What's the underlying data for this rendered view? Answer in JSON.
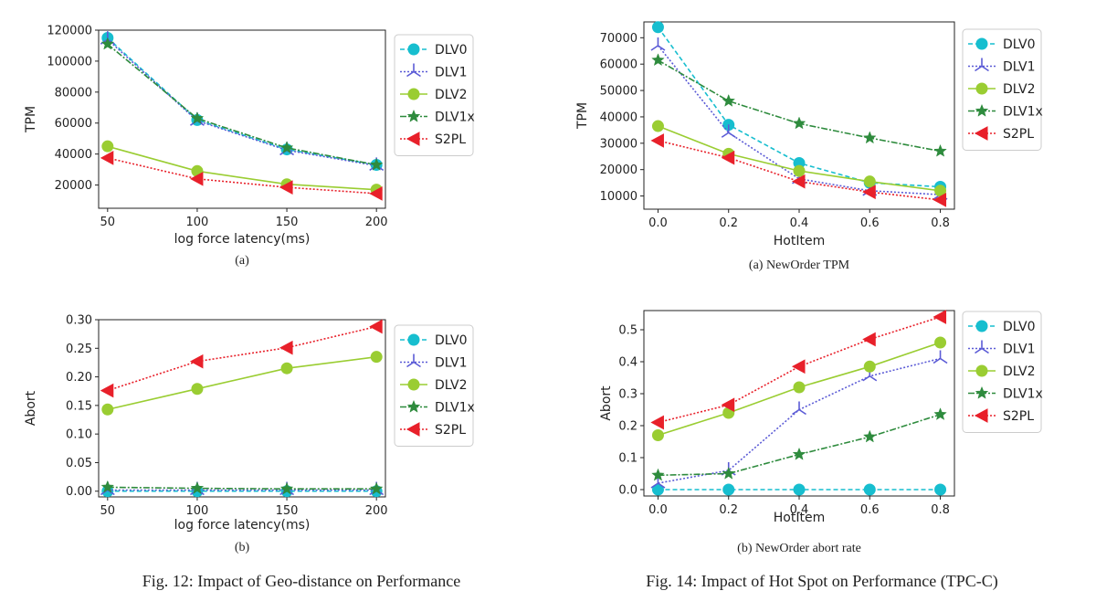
{
  "series_styles": [
    {
      "name": "DLV0",
      "color": "#17becf",
      "dash": "5,3",
      "marker": "circle"
    },
    {
      "name": "DLV1",
      "color": "#5b5bd6",
      "dash": "2,2",
      "marker": "tri_down"
    },
    {
      "name": "DLV2",
      "color": "#9acd32",
      "dash": "",
      "marker": "circle"
    },
    {
      "name": "DLV1x",
      "color": "#2e8b3d",
      "dash": "7,2,2,2",
      "marker": "star"
    },
    {
      "name": "S2PL",
      "color": "#e8202a",
      "dash": "2,2",
      "marker": "triangle_left"
    }
  ],
  "captions": {
    "fig12": "Fig. 12: Impact of Geo-distance on Performance",
    "fig14": "Fig. 14: Impact of Hot Spot on Performance (TPC-C)"
  },
  "chart_data": [
    {
      "type": "line",
      "subcaption": "(a)",
      "xlabel": "log force latency(ms)",
      "ylabel": "TPM",
      "x": [
        50,
        100,
        150,
        200
      ],
      "xlim": [
        45,
        205
      ],
      "ylim": [
        5000,
        120000
      ],
      "yticks": [
        20000,
        40000,
        60000,
        80000,
        100000,
        120000
      ],
      "xticks": [
        50,
        100,
        150,
        200
      ],
      "legend": "right-outside",
      "series": [
        {
          "name": "DLV0",
          "values": [
            115000,
            62000,
            43000,
            33000
          ]
        },
        {
          "name": "DLV1",
          "values": [
            114000,
            61500,
            42500,
            32500
          ]
        },
        {
          "name": "DLV2",
          "values": [
            45000,
            29000,
            20500,
            17000
          ]
        },
        {
          "name": "DLV1x",
          "values": [
            111000,
            63000,
            44000,
            33000
          ]
        },
        {
          "name": "S2PL",
          "values": [
            37500,
            24000,
            18500,
            14500
          ]
        }
      ]
    },
    {
      "type": "line",
      "subcaption": "(b)",
      "xlabel": "log force latency(ms)",
      "ylabel": "Abort",
      "x": [
        50,
        100,
        150,
        200
      ],
      "xlim": [
        45,
        205
      ],
      "ylim": [
        -0.01,
        0.3
      ],
      "yticks": [
        0.0,
        0.05,
        0.1,
        0.15,
        0.2,
        0.25,
        0.3
      ],
      "yticklabels": [
        "0.00",
        "0.05",
        "0.10",
        "0.15",
        "0.20",
        "0.25",
        "0.30"
      ],
      "xticks": [
        50,
        100,
        150,
        200
      ],
      "legend": "right-outside",
      "series": [
        {
          "name": "DLV0",
          "values": [
            0.0,
            0.0,
            0.0,
            0.0
          ]
        },
        {
          "name": "DLV1",
          "values": [
            0.002,
            0.002,
            0.002,
            0.002
          ]
        },
        {
          "name": "DLV2",
          "values": [
            0.143,
            0.179,
            0.215,
            0.235
          ]
        },
        {
          "name": "DLV1x",
          "values": [
            0.007,
            0.005,
            0.004,
            0.004
          ]
        },
        {
          "name": "S2PL",
          "values": [
            0.176,
            0.227,
            0.251,
            0.288
          ]
        }
      ]
    },
    {
      "type": "line",
      "subcaption": "(a) NewOrder TPM",
      "xlabel": "HotItem",
      "ylabel": "TPM",
      "x": [
        0.0,
        0.2,
        0.4,
        0.6,
        0.8
      ],
      "xlim": [
        -0.04,
        0.84
      ],
      "ylim": [
        5000,
        76000
      ],
      "yticks": [
        10000,
        20000,
        30000,
        40000,
        50000,
        60000,
        70000
      ],
      "xticks": [
        0.0,
        0.2,
        0.4,
        0.6,
        0.8
      ],
      "xticklabels": [
        "0.0",
        "0.2",
        "0.4",
        "0.6",
        "0.8"
      ],
      "legend": "right-outside",
      "series": [
        {
          "name": "DLV0",
          "values": [
            74000,
            37000,
            22500,
            15000,
            13500
          ]
        },
        {
          "name": "DLV1",
          "values": [
            67000,
            34000,
            16500,
            12000,
            10500
          ]
        },
        {
          "name": "DLV2",
          "values": [
            36500,
            26000,
            19500,
            15500,
            12000
          ]
        },
        {
          "name": "DLV1x",
          "values": [
            61500,
            46000,
            37500,
            32000,
            27000
          ]
        },
        {
          "name": "S2PL",
          "values": [
            31000,
            24500,
            15500,
            11500,
            8500
          ]
        }
      ]
    },
    {
      "type": "line",
      "subcaption": "(b) NewOrder abort rate",
      "xlabel": "HotItem",
      "ylabel": "Abort",
      "x": [
        0.0,
        0.2,
        0.4,
        0.6,
        0.8
      ],
      "xlim": [
        -0.04,
        0.84
      ],
      "ylim": [
        -0.02,
        0.56
      ],
      "yticks": [
        0.0,
        0.1,
        0.2,
        0.3,
        0.4,
        0.5
      ],
      "yticklabels": [
        "0.0",
        "0.1",
        "0.2",
        "0.3",
        "0.4",
        "0.5"
      ],
      "xticks": [
        0.0,
        0.2,
        0.4,
        0.6,
        0.8
      ],
      "xticklabels": [
        "0.0",
        "0.2",
        "0.4",
        "0.6",
        "0.8"
      ],
      "legend": "right-outside",
      "series": [
        {
          "name": "DLV0",
          "values": [
            0.0,
            0.0,
            0.0,
            0.0,
            0.0
          ]
        },
        {
          "name": "DLV1",
          "values": [
            0.02,
            0.06,
            0.25,
            0.355,
            0.41
          ]
        },
        {
          "name": "DLV2",
          "values": [
            0.17,
            0.24,
            0.32,
            0.385,
            0.46
          ]
        },
        {
          "name": "DLV1x",
          "values": [
            0.045,
            0.05,
            0.11,
            0.165,
            0.235
          ]
        },
        {
          "name": "S2PL",
          "values": [
            0.21,
            0.265,
            0.385,
            0.47,
            0.54
          ]
        }
      ]
    }
  ]
}
